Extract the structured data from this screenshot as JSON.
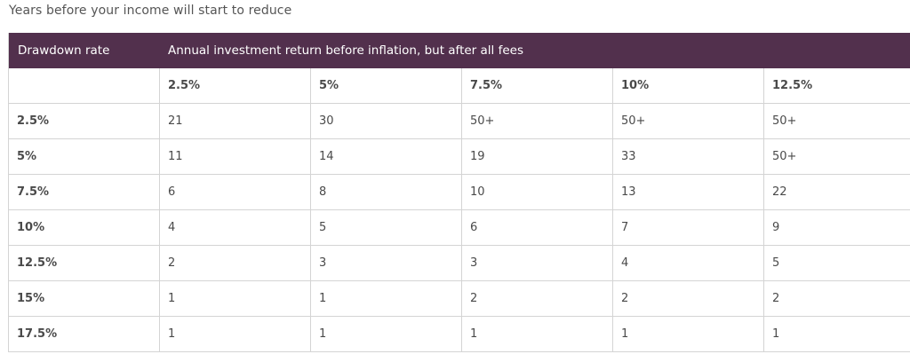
{
  "caption": "Years before your income will start to reduce",
  "table": {
    "header_left": "Drawdown rate",
    "header_right": "Annual investment return before inflation, but after all fees",
    "columns": [
      "",
      "2.5%",
      "5%",
      "7.5%",
      "10%",
      "12.5%"
    ],
    "rows": [
      {
        "rate": "2.5%",
        "values": [
          "21",
          "30",
          "50+",
          "50+",
          "50+"
        ]
      },
      {
        "rate": "5%",
        "values": [
          "11",
          "14",
          "19",
          "33",
          "50+"
        ]
      },
      {
        "rate": "7.5%",
        "values": [
          "6",
          "8",
          "10",
          "13",
          "22"
        ]
      },
      {
        "rate": "10%",
        "values": [
          "4",
          "5",
          "6",
          "7",
          "9"
        ]
      },
      {
        "rate": "12.5%",
        "values": [
          "2",
          "3",
          "3",
          "4",
          "5"
        ]
      },
      {
        "rate": "15%",
        "values": [
          "1",
          "1",
          "2",
          "2",
          "2"
        ]
      },
      {
        "rate": "17.5%",
        "values": [
          "1",
          "1",
          "1",
          "1",
          "1"
        ]
      }
    ]
  },
  "colors": {
    "header_bg": "#52304d",
    "header_text": "#ffffff",
    "border": "#d4d4d4",
    "text": "#4a4a4a"
  }
}
